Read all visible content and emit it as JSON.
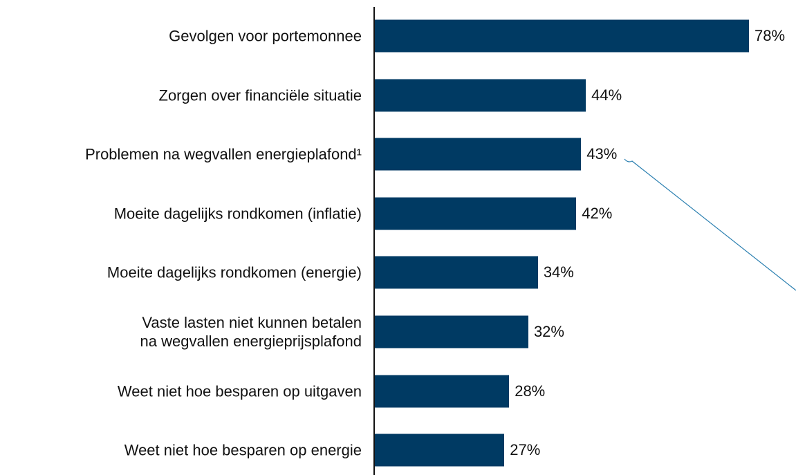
{
  "chart_data": {
    "type": "bar",
    "orientation": "horizontal",
    "categories": [
      "Gevolgen voor portemonnee",
      "Zorgen over financiële situatie",
      "Problemen na wegvallen energieplafond¹",
      "Moeite dagelijks rondkomen (inflatie)",
      "Moeite dagelijks rondkomen (energie)",
      "Vaste lasten niet kunnen betalen\nna wegvallen energieprijsplafond",
      "Weet niet hoe besparen op uitgaven",
      "Weet niet hoe besparen op energie"
    ],
    "values": [
      78,
      44,
      43,
      42,
      34,
      32,
      28,
      27
    ],
    "value_labels": [
      "78%",
      "44%",
      "43%",
      "42%",
      "34%",
      "32%",
      "28%",
      "27%"
    ],
    "color": "#003a63"
  }
}
